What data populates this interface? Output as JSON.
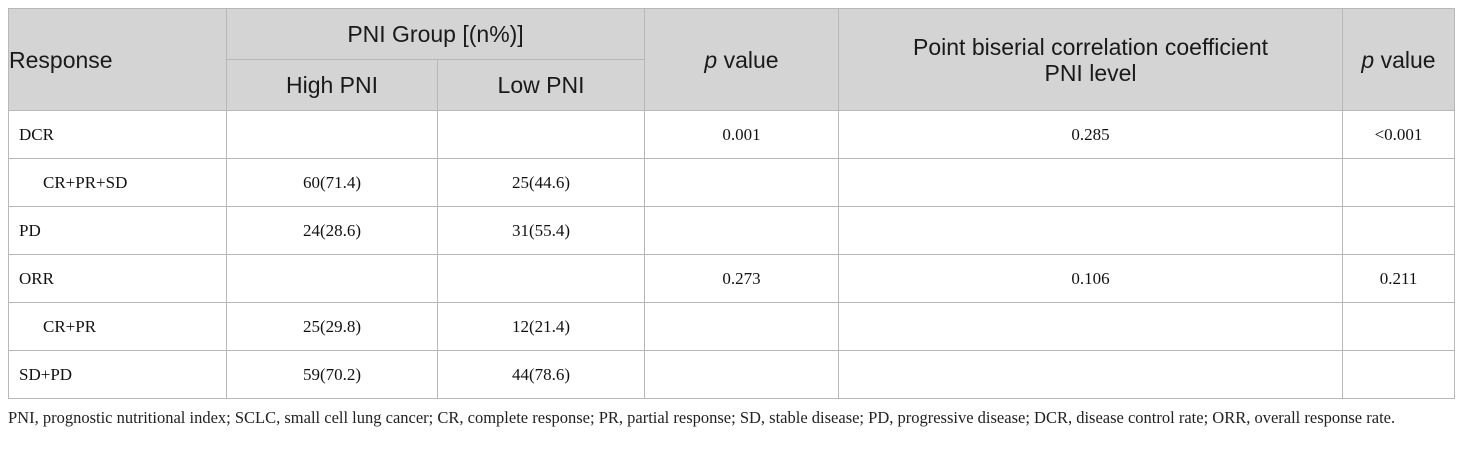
{
  "header": {
    "response": "Response",
    "pni_group": "PNI Group [(n%)]",
    "high_pni": "High PNI",
    "low_pni": "Low PNI",
    "p_italic": "p",
    "p_value_suffix": " value",
    "pbc_line1": "Point biserial correlation coefficient",
    "pbc_line2": "PNI level",
    "p2_italic": "p",
    "p2_value_suffix": " value"
  },
  "rows": [
    {
      "label": "DCR",
      "high": "",
      "low": "",
      "p": "0.001",
      "coef": "0.285",
      "p2": "<0.001"
    },
    {
      "label": "CR+PR+SD",
      "high": "60(71.4)",
      "low": "25(44.6)",
      "p": "",
      "coef": "",
      "p2": ""
    },
    {
      "label": "PD",
      "high": "24(28.6)",
      "low": "31(55.4)",
      "p": "",
      "coef": "",
      "p2": ""
    },
    {
      "label": "ORR",
      "high": "",
      "low": "",
      "p": "0.273",
      "coef": "0.106",
      "p2": "0.211"
    },
    {
      "label": "CR+PR",
      "high": "25(29.8)",
      "low": "12(21.4)",
      "p": "",
      "coef": "",
      "p2": ""
    },
    {
      "label": "SD+PD",
      "high": "59(70.2)",
      "low": "44(78.6)",
      "p": "",
      "coef": "",
      "p2": ""
    }
  ],
  "footnote": "PNI, prognostic nutritional index; SCLC, small cell lung cancer; CR, complete response; PR, partial response; SD, stable disease; PD, progressive disease; DCR, disease control rate; ORR, overall response rate."
}
